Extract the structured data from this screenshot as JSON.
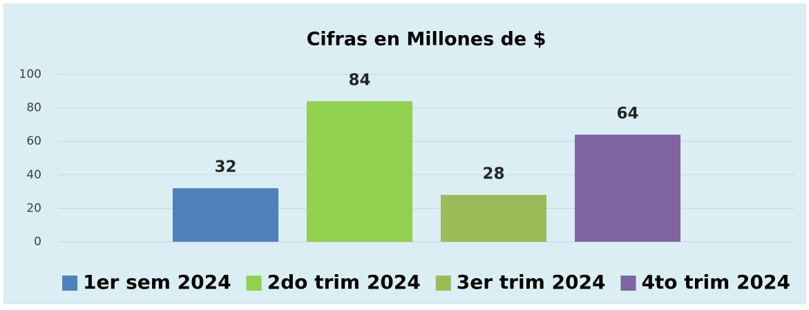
{
  "chart_data": {
    "type": "bar",
    "title": "Cifras en Millones de $",
    "categories": [
      null
    ],
    "series": [
      {
        "name": "1er sem 2024",
        "color": "#4f81bd",
        "values": [
          32
        ]
      },
      {
        "name": "2do trim 2024",
        "color": "#92d050",
        "values": [
          84
        ]
      },
      {
        "name": "3er trim 2024",
        "color": "#9bbb59",
        "values": [
          28
        ]
      },
      {
        "name": "4to trim 2024",
        "color": "#8064a2",
        "values": [
          64
        ]
      }
    ],
    "ylim": [
      0,
      100
    ],
    "yticks": [
      0,
      20,
      40,
      60,
      80,
      100
    ],
    "grid": true,
    "legend": "bottom"
  }
}
